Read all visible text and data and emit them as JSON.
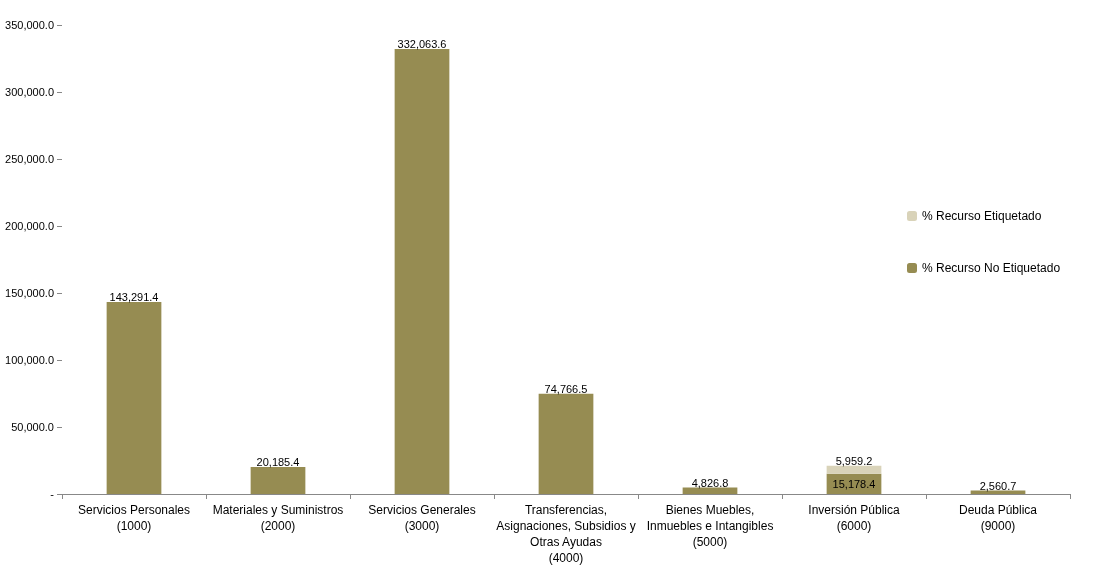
{
  "chart_data": {
    "type": "bar",
    "stacked": true,
    "categories": [
      "Servicios Personales\n(1000)",
      "Materiales y Suministros\n(2000)",
      "Servicios Generales\n(3000)",
      "Transferencias,\nAsignaciones, Subsidios y\nOtras Ayudas\n(4000)",
      "Bienes Muebles,\nInmuebles e Intangibles\n(5000)",
      "Inversión Pública\n(6000)",
      "Deuda Pública\n(9000)"
    ],
    "series": [
      {
        "name": "% Recurso No Etiquetado",
        "color": "#968c52",
        "values": [
          143291.4,
          20185.4,
          332063.6,
          74766.5,
          4826.8,
          15178.4,
          2560.7
        ],
        "value_labels": [
          "143,291.4",
          "20,185.4",
          "332,063.6",
          "74,766.5",
          "4,826.8",
          "15,178.4",
          "2,560.7"
        ]
      },
      {
        "name": "% Recurso Etiquetado",
        "color": "#d9d3b9",
        "values": [
          null,
          null,
          null,
          null,
          null,
          5959.2,
          null
        ],
        "value_labels": [
          null,
          null,
          null,
          null,
          null,
          "5,959.2",
          null
        ]
      }
    ],
    "ylim": [
      0,
      350000
    ],
    "yticks": [
      {
        "value": 0,
        "label": "-"
      },
      {
        "value": 50000,
        "label": "50,000.0"
      },
      {
        "value": 100000,
        "label": "100,000.0"
      },
      {
        "value": 150000,
        "label": "150,000.0"
      },
      {
        "value": 200000,
        "label": "200,000.0"
      },
      {
        "value": 250000,
        "label": "250,000.0"
      },
      {
        "value": 300000,
        "label": "300,000.0"
      },
      {
        "value": 350000,
        "label": "350,000.0"
      }
    ],
    "grid": false,
    "legend": "right"
  }
}
